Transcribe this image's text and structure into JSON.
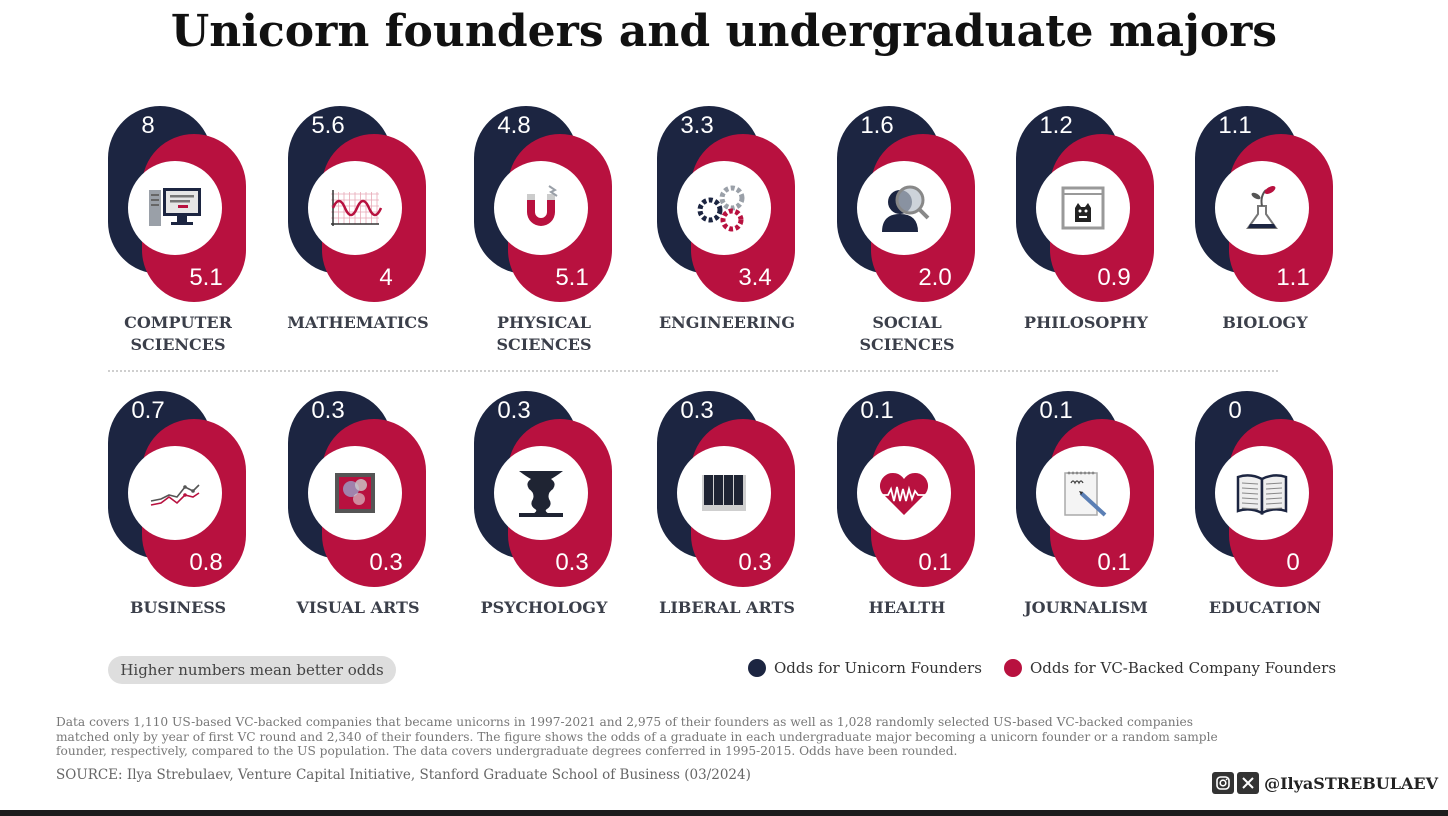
{
  "title": "Unicorn founders and undergraduate majors",
  "colors": {
    "navy": "#1c2541",
    "red": "#b8113f"
  },
  "chart_data": {
    "type": "table",
    "title": "Unicorn founders and undergraduate majors",
    "series": [
      {
        "name": "Odds for Unicorn Founders",
        "values": [
          8,
          5.6,
          4.8,
          3.3,
          1.6,
          1.2,
          1.1,
          0.7,
          0.3,
          0.3,
          0.3,
          0.1,
          0.1,
          0
        ]
      },
      {
        "name": "Odds for VC-Backed Company Founders",
        "values": [
          5.1,
          4,
          5.1,
          3.4,
          2.0,
          0.9,
          1.1,
          0.8,
          0.3,
          0.3,
          0.3,
          0.1,
          0.1,
          0
        ]
      }
    ],
    "categories": [
      "COMPUTER SCIENCES",
      "MATHEMATICS",
      "PHYSICAL SCIENCES",
      "ENGINEERING",
      "SOCIAL SCIENCES",
      "PHILOSOPHY",
      "BIOLOGY",
      "BUSINESS",
      "VISUAL ARTS",
      "PSYCHOLOGY",
      "LIBERAL ARTS",
      "HEALTH",
      "JOURNALISM",
      "EDUCATION"
    ],
    "majors": [
      {
        "label": "COMPUTER\nSCIENCES",
        "unicorn": "8",
        "vc": "5.1",
        "icon": "computer-icon"
      },
      {
        "label": "MATHEMATICS",
        "unicorn": "5.6",
        "vc": "4",
        "icon": "graph-wave-icon"
      },
      {
        "label": "PHYSICAL\nSCIENCES",
        "unicorn": "4.8",
        "vc": "5.1",
        "icon": "magnet-icon"
      },
      {
        "label": "ENGINEERING",
        "unicorn": "3.3",
        "vc": "3.4",
        "icon": "gears-icon"
      },
      {
        "label": "SOCIAL\nSCIENCES",
        "unicorn": "1.6",
        "vc": "2.0",
        "icon": "person-magnifier-icon"
      },
      {
        "label": "PHILOSOPHY",
        "unicorn": "1.2",
        "vc": "0.9",
        "icon": "cat-box-icon"
      },
      {
        "label": "BIOLOGY",
        "unicorn": "1.1",
        "vc": "1.1",
        "icon": "flask-plant-icon"
      },
      {
        "label": "BUSINESS",
        "unicorn": "0.7",
        "vc": "0.8",
        "icon": "line-chart-icon"
      },
      {
        "label": "VISUAL ARTS",
        "unicorn": "0.3",
        "vc": "0.3",
        "icon": "painting-icon"
      },
      {
        "label": "PSYCHOLOGY",
        "unicorn": "0.3",
        "vc": "0.3",
        "icon": "vase-faces-icon"
      },
      {
        "label": "LIBERAL ARTS",
        "unicorn": "0.3",
        "vc": "0.3",
        "icon": "piano-keys-icon"
      },
      {
        "label": "HEALTH",
        "unicorn": "0.1",
        "vc": "0.1",
        "icon": "heartbeat-icon"
      },
      {
        "label": "JOURNALISM",
        "unicorn": "0.1",
        "vc": "0.1",
        "icon": "notepad-pen-icon"
      },
      {
        "label": "EDUCATION",
        "unicorn": "0",
        "vc": "0",
        "icon": "open-book-icon"
      }
    ],
    "legend": [
      "Odds for Unicorn Founders",
      "Odds for VC-Backed Company Founders"
    ]
  },
  "note": "Higher numbers mean better odds",
  "footnote": "Data covers 1,110 US-based VC-backed companies that became unicorns in 1997-2021 and 2,975 of their founders as well as 1,028 randomly selected US-based VC-backed companies matched only by year of first VC round and 2,340 of their founders. The figure shows the odds of a graduate in each undergraduate major becoming a unicorn founder or a random sample founder, respectively, compared to the US population. The data covers undergraduate degrees conferred in 1995-2015. Odds have been rounded.",
  "source": "SOURCE: Ilya Strebulaev, Venture Capital Initiative, Stanford Graduate School of Business (03/2024)",
  "handle": "@IlyaSTREBULAEV"
}
